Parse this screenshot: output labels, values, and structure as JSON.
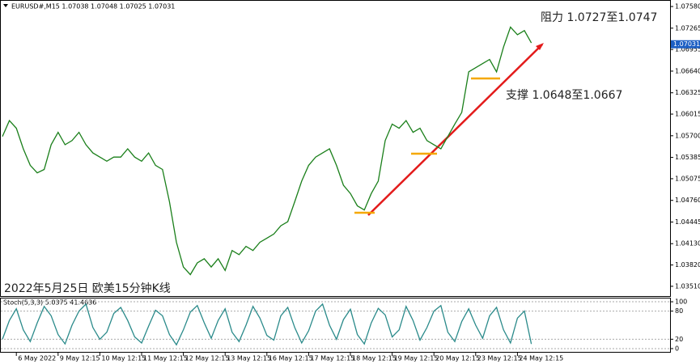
{
  "chart_data": [
    {
      "type": "line",
      "title": "EURUSD#,M15 1.07038 1.07048 1.07025 1.07031",
      "annotations": [
        "阻力 1.0727至1.0747",
        "支撑 1.0648至1.0667",
        "2022年5月25日 欧美15分钟K线"
      ],
      "categories": [
        null,
        null,
        "6 May 2022",
        null,
        null,
        null,
        null,
        null,
        "9 May 12:15",
        null,
        null,
        null,
        null,
        null,
        "10 May 12:15",
        null,
        null,
        null,
        null,
        null,
        "11 May 12:15",
        null,
        null,
        null,
        null,
        null,
        "12 May 12:15",
        null,
        null,
        null,
        null,
        null,
        "13 May 12:15",
        null,
        null,
        null,
        null,
        null,
        "16 May 12:15",
        null,
        null,
        null,
        null,
        null,
        "17 May 12:15",
        null,
        null,
        null,
        null,
        null,
        "18 May 12:15",
        null,
        null,
        null,
        null,
        null,
        "19 May 12:15",
        null,
        null,
        null,
        null,
        null,
        "20 May 12:15",
        null,
        null,
        null,
        null,
        null,
        "23 May 12:15",
        null,
        null,
        null,
        null,
        null,
        "24 May 12:15",
        null,
        null
      ],
      "color": "#1a7f1a",
      "values": [
        1.0569,
        1.0592,
        1.0581,
        1.0551,
        1.0527,
        1.0516,
        1.0521,
        1.0557,
        1.0575,
        1.0557,
        1.0563,
        1.0575,
        1.0557,
        1.0545,
        1.0539,
        1.0533,
        1.0539,
        1.0539,
        1.0551,
        1.0539,
        1.0533,
        1.0545,
        1.0527,
        1.0521,
        1.0474,
        1.0415,
        1.0379,
        1.0368,
        1.0385,
        1.0391,
        1.0379,
        1.0391,
        1.0374,
        1.0403,
        1.0397,
        1.0409,
        1.0403,
        1.0415,
        1.0421,
        1.0427,
        1.0439,
        1.0445,
        1.0474,
        1.0504,
        1.0527,
        1.0539,
        1.0545,
        1.0551,
        1.0527,
        1.0498,
        1.0486,
        1.0468,
        1.0462,
        1.0486,
        1.0504,
        1.0563,
        1.0587,
        1.0581,
        1.0592,
        1.0575,
        1.0581,
        1.0563,
        1.0557,
        1.0551,
        1.0569,
        1.0587,
        1.0604,
        1.0663,
        1.0669,
        1.0675,
        1.0681,
        1.0663,
        1.0699,
        1.0728,
        1.0717,
        1.0723,
        1.0705
      ],
      "last_price": {
        "value": 1.07031,
        "label": "1.07031"
      },
      "ylim": [
        1.03368,
        1.07663
      ],
      "yticks": [
        {
          "value": 1.0758,
          "label": "1.07580"
        },
        1.07265,
        1.06955,
        {
          "value": 1.0664,
          "label": "1.06640"
        },
        1.06325,
        1.06015,
        {
          "value": 1.057,
          "label": "1.05700"
        },
        1.05385,
        1.05075,
        {
          "value": 1.0476,
          "label": "1.04760"
        },
        1.04445,
        {
          "value": 1.0413,
          "label": "1.04130"
        },
        {
          "value": 1.0382,
          "label": "1.03820"
        },
        {
          "value": 1.0351,
          "label": "1.03510"
        }
      ]
    },
    {
      "type": "line",
      "title": "Stoch(5,3,3) 5.0375 41.4636",
      "color": "#2a8a8a",
      "values": [
        20,
        60,
        85,
        40,
        15,
        55,
        90,
        70,
        30,
        10,
        50,
        80,
        95,
        45,
        20,
        35,
        75,
        88,
        60,
        25,
        12,
        48,
        82,
        70,
        30,
        8,
        40,
        78,
        92,
        55,
        22,
        60,
        85,
        35,
        15,
        50,
        90,
        65,
        28,
        18,
        70,
        88,
        45,
        12,
        38,
        80,
        95,
        50,
        20,
        62,
        84,
        30,
        10,
        55,
        86,
        72,
        25,
        40,
        90,
        60,
        18,
        45,
        80,
        92,
        35,
        15,
        58,
        85,
        50,
        22,
        70,
        88,
        40,
        12,
        65,
        80,
        10
      ],
      "ylim": [
        -7,
        107
      ],
      "yticks": [
        100,
        80,
        20,
        0
      ]
    }
  ]
}
